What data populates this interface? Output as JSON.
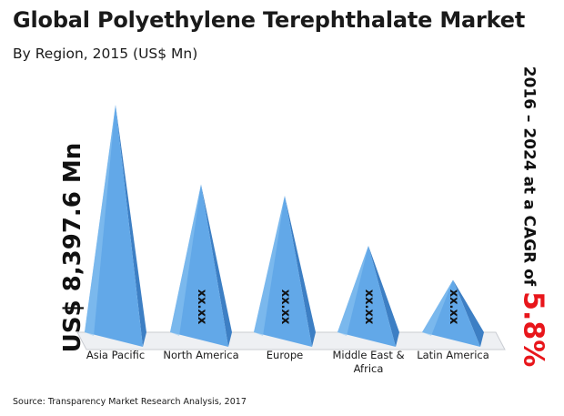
{
  "header": {
    "title": "Global Polyethylene Terephthalate Market",
    "subtitle": "By Region, 2015 (US$ Mn)"
  },
  "callouts": {
    "left": "US$ 8,397.6 Mn",
    "right_prefix": "2016 – 2024 at a CAGR of ",
    "right_value": "5.8%"
  },
  "footer": {
    "source": "Source: Transparency Market Research Analysis, 2017"
  },
  "colors": {
    "pyramid_face": "#62a8e8",
    "pyramid_side": "#3d7fc4",
    "cagr": "#e8161b"
  },
  "chart_data": {
    "type": "bar",
    "categories": [
      "Asia Pacific",
      "North America",
      "Europe",
      "Middle East & Africa",
      "Latin America"
    ],
    "category_lines": [
      [
        "Asia Pacific"
      ],
      [
        "North America"
      ],
      [
        "Europe"
      ],
      [
        "Middle East &",
        "Africa"
      ],
      [
        "Latin America"
      ]
    ],
    "values": [
      8397.6,
      null,
      null,
      null,
      null
    ],
    "value_labels": [
      "",
      "xx.xx",
      "xx.xx",
      "xx.xx",
      "xx.xx"
    ],
    "relative_heights": [
      1.0,
      0.65,
      0.6,
      0.38,
      0.23
    ],
    "title": "Global Polyethylene Terephthalate Market",
    "xlabel": "",
    "ylabel": ""
  }
}
